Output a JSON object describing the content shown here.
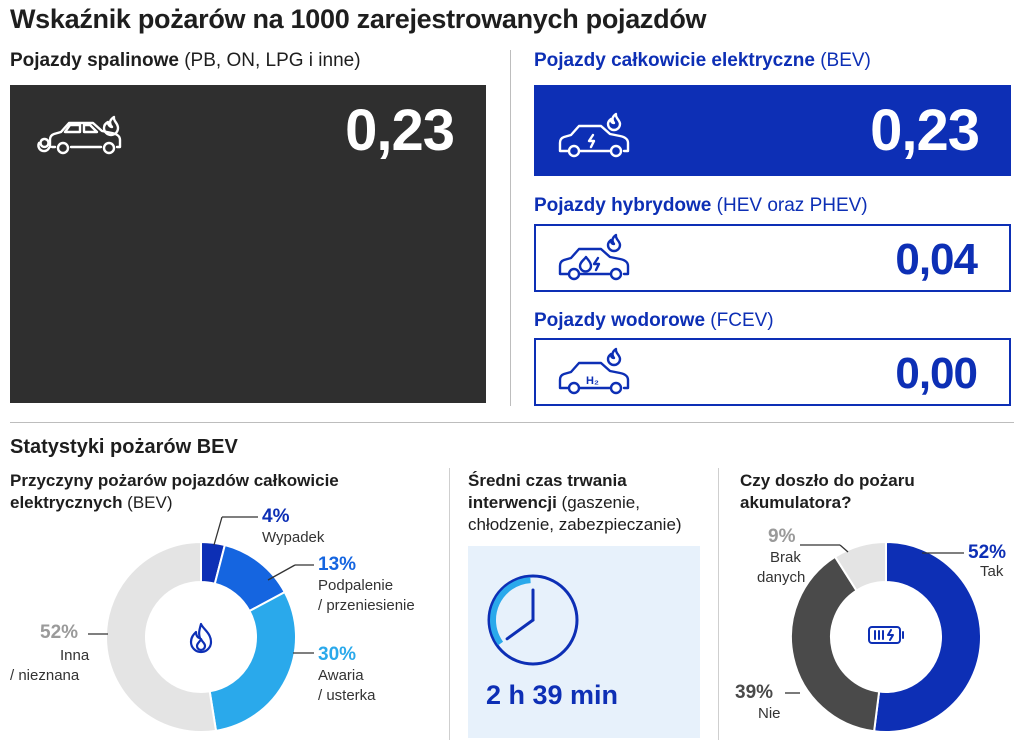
{
  "title": "Wskaźnik pożarów na 1000 zarejestrowanych pojazdów",
  "ice": {
    "label_bold": "Pojazdy spalinowe",
    "label_rest": " (PB, ON, LPG i inne)",
    "value": "0,23"
  },
  "bev": {
    "label_bold": "Pojazdy całkowicie elektryczne",
    "label_rest": " (BEV)",
    "value": "0,23"
  },
  "hev": {
    "label_bold": "Pojazdy hybrydowe",
    "label_rest": " (HEV oraz PHEV)",
    "value": "0,04"
  },
  "fcev": {
    "label_bold": "Pojazdy wodorowe",
    "label_rest": " (FCEV)",
    "value": "0,00",
    "badge": "H₂"
  },
  "stats_title": "Statystyki pożarów BEV",
  "causes": {
    "title_bold_1": "Przyczyny pożarów pojazdów całkowicie",
    "title_bold_2": "elektrycznych",
    "title_rest": " (BEV)"
  },
  "duration": {
    "title_bold_1": "Średni czas trwania",
    "title_bold_2": "interwencji",
    "title_rest_1": " (gaszenie,",
    "title_rest_2": "chłodzenie, zabezpieczanie)",
    "value": "2 h 39 min",
    "minutes": 159
  },
  "battery": {
    "title_1": "Czy doszło do pożaru",
    "title_2": "akumulatora?"
  },
  "colors": {
    "navy": "#0d2fb5",
    "blue": "#1565e0",
    "light_blue": "#2aa9eb",
    "grey_light": "#e4e4e4",
    "dark": "#2f2f2f",
    "dark_grey": "#4a4a4a"
  },
  "chart_data": [
    {
      "type": "bar",
      "title": "Wskaźnik pożarów na 1000 zarejestrowanych pojazdów",
      "categories": [
        "Pojazdy spalinowe",
        "Pojazdy całkowicie elektryczne",
        "Pojazdy hybrydowe",
        "Pojazdy wodorowe"
      ],
      "values": [
        0.23,
        0.23,
        0.04,
        0.0
      ]
    },
    {
      "type": "pie",
      "title": "Przyczyny pożarów pojazdów całkowicie elektrycznych (BEV)",
      "slices": [
        {
          "pct": "4%",
          "value": 4,
          "name_1": "Wypadek",
          "name_2": "",
          "color": "#0d2fb5"
        },
        {
          "pct": "13%",
          "value": 13,
          "name_1": "Podpalenie",
          "name_2": "/ przeniesienie",
          "color": "#1565e0"
        },
        {
          "pct": "30%",
          "value": 30,
          "name_1": "Awaria",
          "name_2": "/ usterka",
          "color": "#2aa9eb"
        },
        {
          "pct": "52%",
          "value": 52,
          "name_1": "Inna",
          "name_2": "/ nieznana",
          "color": "#e4e4e4"
        }
      ]
    },
    {
      "type": "pie",
      "title": "Czy doszło do pożaru akumulatora?",
      "slices": [
        {
          "pct": "52%",
          "value": 52,
          "name_1": "Tak",
          "name_2": "",
          "color": "#0d2fb5"
        },
        {
          "pct": "39%",
          "value": 39,
          "name_1": "Nie",
          "name_2": "",
          "color": "#4a4a4a"
        },
        {
          "pct": "9%",
          "value": 9,
          "name_1": "Brak",
          "name_2": "danych",
          "color": "#e4e4e4"
        }
      ]
    }
  ]
}
